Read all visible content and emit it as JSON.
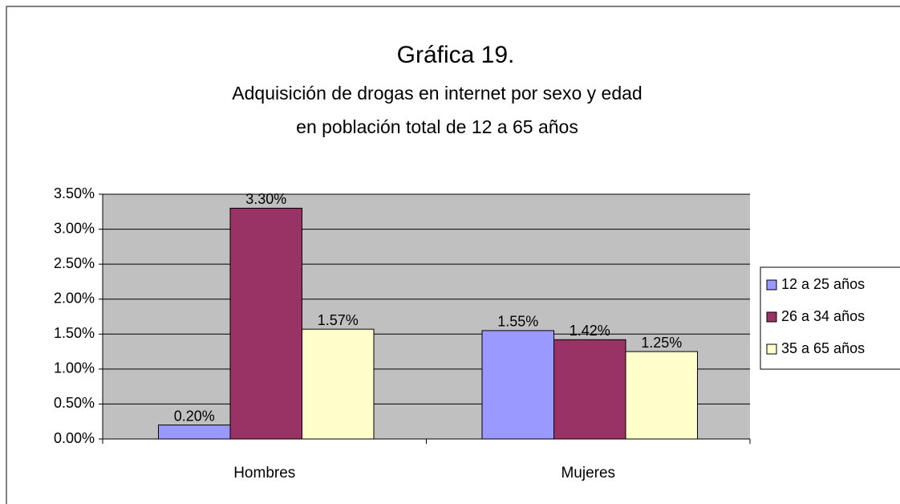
{
  "chart_data": {
    "type": "bar",
    "title": "Gráfica 19.",
    "subtitle": [
      "Adquisición de drogas en internet por sexo y edad",
      "en población total de 12 a 65 años"
    ],
    "categories": [
      "Hombres",
      "Mujeres"
    ],
    "series": [
      {
        "name": "12 a 25 años",
        "color": "#9999ff",
        "values": [
          0.2,
          1.55
        ],
        "value_labels": [
          "0.20%",
          "1.55%"
        ]
      },
      {
        "name": "26 a 34 años",
        "color": "#993366",
        "values": [
          3.3,
          1.42
        ],
        "value_labels": [
          "3.30%",
          "1.42%"
        ]
      },
      {
        "name": "35 a 65 años",
        "color": "#ffffcc",
        "values": [
          1.57,
          1.25
        ],
        "value_labels": [
          "1.57%",
          "1.25%"
        ]
      }
    ],
    "ylim": [
      0,
      3.5
    ],
    "yticks": [
      {
        "value": 0,
        "label": "0.00%"
      },
      {
        "value": 0.5,
        "label": "0.50%"
      },
      {
        "value": 1,
        "label": "1.00%"
      },
      {
        "value": 1.5,
        "label": "1.50%"
      },
      {
        "value": 2,
        "label": "2.00%"
      },
      {
        "value": 2.5,
        "label": "2.50%"
      },
      {
        "value": 3,
        "label": "3.00%"
      },
      {
        "value": 3.5,
        "label": "3.50%"
      }
    ],
    "grid": true,
    "legend": "right",
    "plot_background": "#c0c0c0"
  }
}
